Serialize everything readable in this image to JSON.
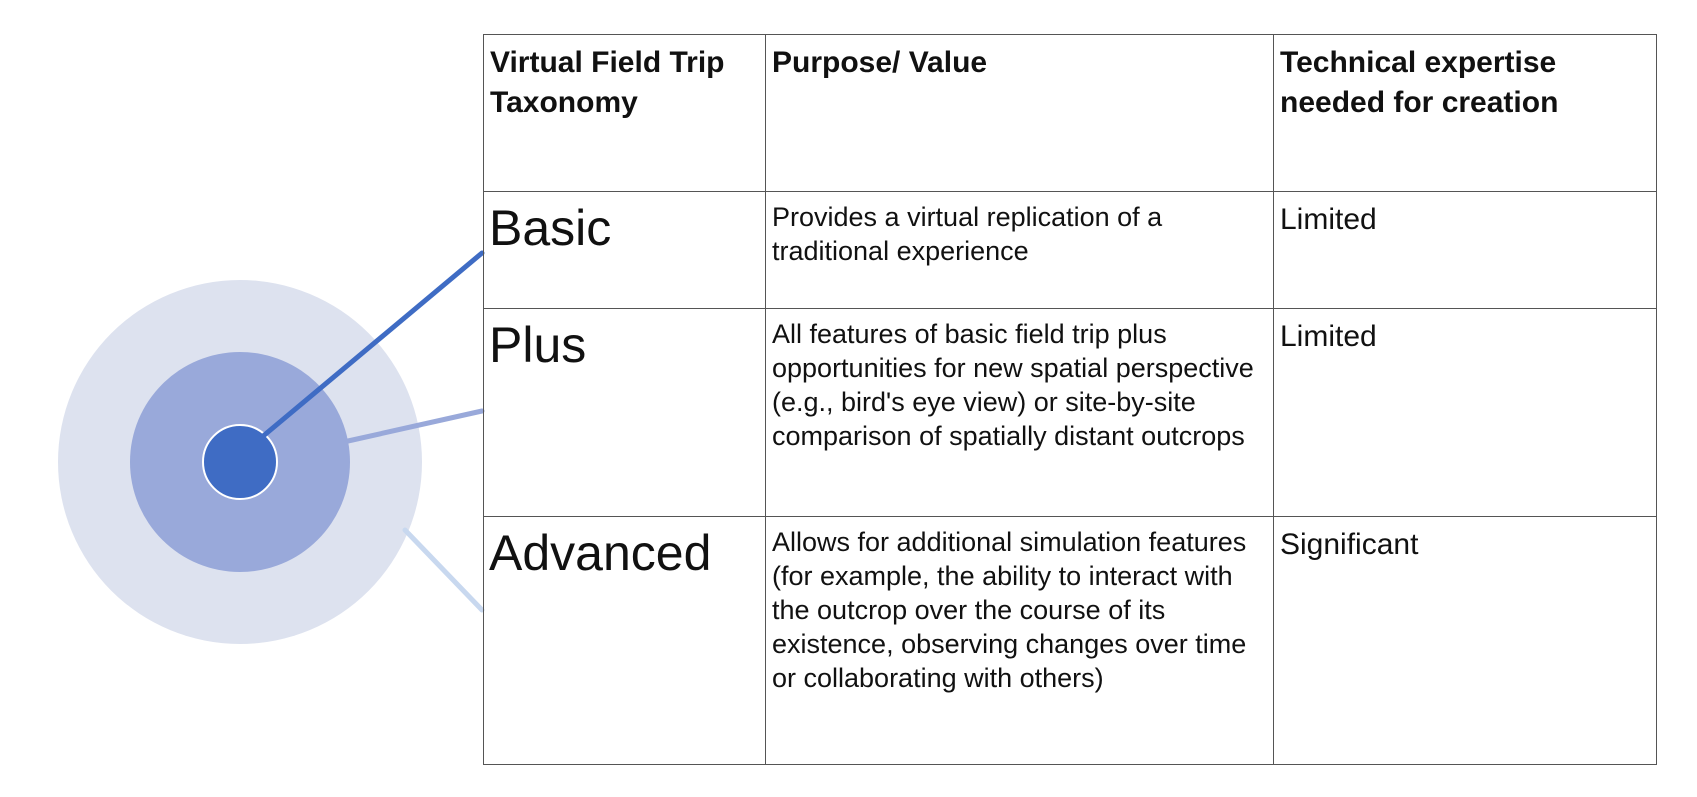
{
  "table": {
    "headers": [
      "Virtual Field Trip Taxonomy",
      "Purpose/ Value",
      "Technical expertise needed for creation"
    ],
    "rows": [
      {
        "tier": "Basic",
        "purpose": "Provides a virtual replication of a traditional experience",
        "expertise": "Limited"
      },
      {
        "tier": "Plus",
        "purpose": "All features of basic field trip plus opportunities for new spatial perspective (e.g., bird's eye view) or site-by-site comparison of spatially distant outcrops",
        "expertise": "Limited"
      },
      {
        "tier": "Advanced",
        "purpose": "Allows for additional simulation features (for example, the ability to interact with the outcrop over the course of its existence, observing changes over time or collaborating with others)",
        "expertise": "Significant"
      }
    ]
  },
  "colors": {
    "outer_ring": "#dde2ef",
    "middle_ring": "#99a9da",
    "inner_core": "#3f6cc4",
    "line_basic": "#3f6cc4",
    "line_plus": "#99a9da",
    "line_advanced": "#c8d8ef",
    "border": "#555555"
  }
}
